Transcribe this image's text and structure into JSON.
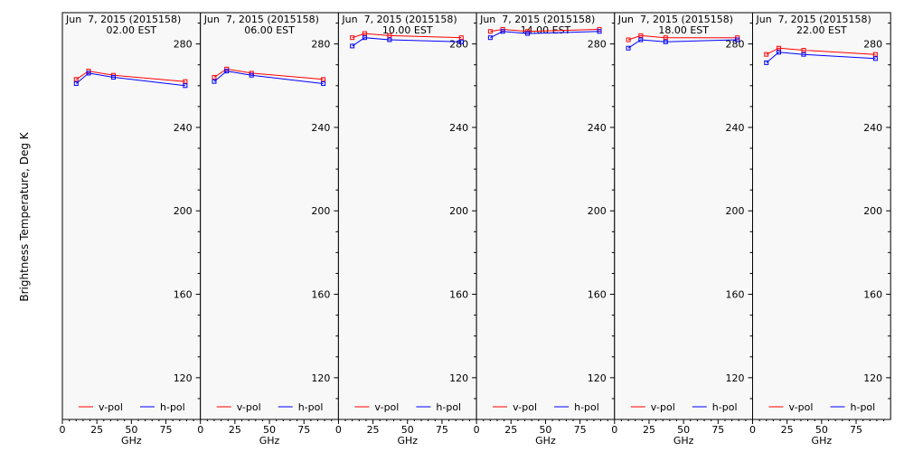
{
  "figure": {
    "ylabel": "Brightness Temperature, Deg K",
    "xlabel": "GHz"
  },
  "colors": {
    "v_pol": "#ff0000",
    "h_pol": "#0000ff",
    "panel_bg": "#f8f8f8",
    "axis": "#000000"
  },
  "chart_data": [
    {
      "type": "line",
      "title": "Jun  7, 2015 (2015158)",
      "subtitle": "02.00 EST",
      "xlabel": "GHz",
      "xlim": [
        0,
        100
      ],
      "ylim": [
        100,
        295
      ],
      "yticks": [
        120,
        160,
        200,
        240,
        280
      ],
      "xticks": [
        0,
        25,
        50,
        75
      ],
      "legend": "bottom",
      "series": [
        {
          "name": "v-pol",
          "color": "#ff0000",
          "x": [
            10,
            19,
            37,
            89
          ],
          "y": [
            263,
            267,
            265,
            262
          ]
        },
        {
          "name": "h-pol",
          "color": "#0000ff",
          "x": [
            10,
            19,
            37,
            89
          ],
          "y": [
            261,
            266,
            264,
            260
          ]
        }
      ]
    },
    {
      "type": "line",
      "title": "Jun  7, 2015 (2015158)",
      "subtitle": "06.00 EST",
      "xlabel": "GHz",
      "xlim": [
        0,
        100
      ],
      "ylim": [
        100,
        295
      ],
      "yticks": [
        120,
        160,
        200,
        240,
        280
      ],
      "xticks": [
        0,
        25,
        50,
        75
      ],
      "legend": "bottom",
      "series": [
        {
          "name": "v-pol",
          "color": "#ff0000",
          "x": [
            10,
            19,
            37,
            89
          ],
          "y": [
            264,
            268,
            266,
            263
          ]
        },
        {
          "name": "h-pol",
          "color": "#0000ff",
          "x": [
            10,
            19,
            37,
            89
          ],
          "y": [
            262,
            267,
            265,
            261
          ]
        }
      ]
    },
    {
      "type": "line",
      "title": "Jun  7, 2015 (2015158)",
      "subtitle": "10.00 EST",
      "xlabel": "GHz",
      "xlim": [
        0,
        100
      ],
      "ylim": [
        100,
        295
      ],
      "yticks": [
        120,
        160,
        200,
        240,
        280
      ],
      "xticks": [
        0,
        25,
        50,
        75
      ],
      "legend": "bottom",
      "series": [
        {
          "name": "v-pol",
          "color": "#ff0000",
          "x": [
            10,
            19,
            37,
            89
          ],
          "y": [
            283,
            285,
            284,
            283
          ]
        },
        {
          "name": "h-pol",
          "color": "#0000ff",
          "x": [
            10,
            19,
            37,
            89
          ],
          "y": [
            279,
            283,
            282,
            281
          ]
        }
      ]
    },
    {
      "type": "line",
      "title": "Jun  7, 2015 (2015158)",
      "subtitle": "14.00 EST",
      "xlabel": "GHz",
      "xlim": [
        0,
        100
      ],
      "ylim": [
        100,
        295
      ],
      "yticks": [
        120,
        160,
        200,
        240,
        280
      ],
      "xticks": [
        0,
        25,
        50,
        75
      ],
      "legend": "bottom",
      "series": [
        {
          "name": "v-pol",
          "color": "#ff0000",
          "x": [
            10,
            19,
            37,
            89
          ],
          "y": [
            286,
            287,
            286,
            287
          ]
        },
        {
          "name": "h-pol",
          "color": "#0000ff",
          "x": [
            10,
            19,
            37,
            89
          ],
          "y": [
            283,
            286,
            285,
            286
          ]
        }
      ]
    },
    {
      "type": "line",
      "title": "Jun  7, 2015 (2015158)",
      "subtitle": "18.00 EST",
      "xlabel": "GHz",
      "xlim": [
        0,
        100
      ],
      "ylim": [
        100,
        295
      ],
      "yticks": [
        120,
        160,
        200,
        240,
        280
      ],
      "xticks": [
        0,
        25,
        50,
        75
      ],
      "legend": "bottom",
      "series": [
        {
          "name": "v-pol",
          "color": "#ff0000",
          "x": [
            10,
            19,
            37,
            89
          ],
          "y": [
            282,
            284,
            283,
            283
          ]
        },
        {
          "name": "h-pol",
          "color": "#0000ff",
          "x": [
            10,
            19,
            37,
            89
          ],
          "y": [
            278,
            282,
            281,
            282
          ]
        }
      ]
    },
    {
      "type": "line",
      "title": "Jun  7, 2015 (2015158)",
      "subtitle": "22.00 EST",
      "xlabel": "GHz",
      "xlim": [
        0,
        100
      ],
      "ylim": [
        100,
        295
      ],
      "yticks": [
        120,
        160,
        200,
        240,
        280
      ],
      "xticks": [
        0,
        25,
        50,
        75
      ],
      "legend": "bottom",
      "series": [
        {
          "name": "v-pol",
          "color": "#ff0000",
          "x": [
            10,
            19,
            37,
            89
          ],
          "y": [
            275,
            278,
            277,
            275
          ]
        },
        {
          "name": "h-pol",
          "color": "#0000ff",
          "x": [
            10,
            19,
            37,
            89
          ],
          "y": [
            271,
            276,
            275,
            273
          ]
        }
      ]
    }
  ]
}
